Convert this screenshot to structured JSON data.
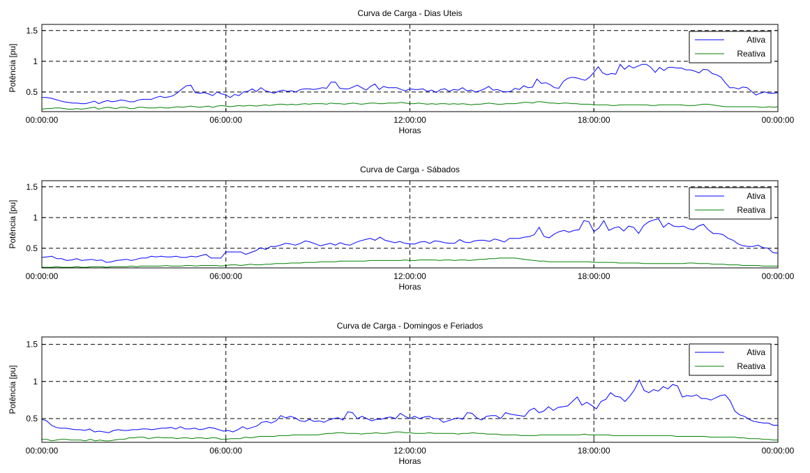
{
  "colors": {
    "ativa": "#0000ff",
    "reativa": "#008000",
    "grid": "#000000",
    "axes": "#000000"
  },
  "chart_data": [
    {
      "type": "line",
      "title": "Curva de Carga - Dias Uteis",
      "xlabel": "Horas",
      "ylabel": "Potência [pu]",
      "xlim": [
        0,
        24
      ],
      "ylim": [
        0.18,
        1.6
      ],
      "yticks": [
        0.5,
        1,
        1.5
      ],
      "ytick_labels": [
        "0.5",
        "1",
        "1.5"
      ],
      "xticks": [
        0,
        6,
        12,
        18,
        24
      ],
      "xtick_labels": [
        "00:00:00",
        "06:00:00",
        "12:00:00",
        "18:00:00",
        "00:00:00"
      ],
      "grid": true,
      "legend": "top-right",
      "series": [
        {
          "name": "Ativa",
          "color": "#0000ff",
          "x_step": 0.1667,
          "values": [
            0.41,
            0.41,
            0.4,
            0.38,
            0.36,
            0.34,
            0.33,
            0.32,
            0.32,
            0.31,
            0.31,
            0.33,
            0.35,
            0.31,
            0.34,
            0.36,
            0.34,
            0.35,
            0.37,
            0.36,
            0.34,
            0.34,
            0.37,
            0.38,
            0.38,
            0.38,
            0.41,
            0.43,
            0.41,
            0.42,
            0.44,
            0.49,
            0.55,
            0.6,
            0.61,
            0.49,
            0.48,
            0.49,
            0.47,
            0.44,
            0.5,
            0.47,
            0.45,
            0.41,
            0.46,
            0.44,
            0.5,
            0.51,
            0.55,
            0.51,
            0.57,
            0.52,
            0.5,
            0.48,
            0.51,
            0.53,
            0.51,
            0.52,
            0.5,
            0.54,
            0.55,
            0.55,
            0.54,
            0.55,
            0.57,
            0.56,
            0.66,
            0.66,
            0.56,
            0.55,
            0.55,
            0.58,
            0.61,
            0.57,
            0.53,
            0.59,
            0.63,
            0.54,
            0.59,
            0.57,
            0.57,
            0.57,
            0.54,
            0.52,
            0.55,
            0.54,
            0.54,
            0.55,
            0.51,
            0.53,
            0.49,
            0.54,
            0.55,
            0.51,
            0.54,
            0.53,
            0.57,
            0.52,
            0.53,
            0.5,
            0.52,
            0.55,
            0.59,
            0.53,
            0.54,
            0.51,
            0.5,
            0.51,
            0.56,
            0.54,
            0.6,
            0.57,
            0.58,
            0.71,
            0.64,
            0.65,
            0.62,
            0.57,
            0.56,
            0.67,
            0.72,
            0.74,
            0.73,
            0.71,
            0.69,
            0.74,
            0.82,
            0.91,
            0.81,
            0.78,
            0.8,
            0.79,
            0.95,
            0.87,
            0.93,
            0.89,
            0.92,
            0.95,
            0.95,
            0.9,
            0.82,
            0.9,
            0.85,
            0.9,
            0.9,
            0.89,
            0.89,
            0.86,
            0.86,
            0.84,
            0.81,
            0.87,
            0.86,
            0.8,
            0.78,
            0.74,
            0.65,
            0.57,
            0.57,
            0.55,
            0.58,
            0.57,
            0.51,
            0.45,
            0.48,
            0.5,
            0.48,
            0.48,
            0.49
          ]
        },
        {
          "name": "Reativa",
          "color": "#008000",
          "x_step": 0.1667,
          "values": [
            0.22,
            0.23,
            0.23,
            0.24,
            0.24,
            0.23,
            0.22,
            0.22,
            0.23,
            0.22,
            0.23,
            0.24,
            0.25,
            0.22,
            0.24,
            0.25,
            0.24,
            0.23,
            0.25,
            0.25,
            0.23,
            0.23,
            0.25,
            0.25,
            0.24,
            0.24,
            0.24,
            0.25,
            0.24,
            0.24,
            0.25,
            0.26,
            0.25,
            0.26,
            0.27,
            0.26,
            0.25,
            0.26,
            0.27,
            0.25,
            0.27,
            0.28,
            0.27,
            0.26,
            0.27,
            0.28,
            0.27,
            0.28,
            0.28,
            0.27,
            0.28,
            0.29,
            0.28,
            0.29,
            0.3,
            0.3,
            0.29,
            0.3,
            0.29,
            0.3,
            0.31,
            0.3,
            0.31,
            0.31,
            0.31,
            0.3,
            0.32,
            0.31,
            0.31,
            0.3,
            0.31,
            0.32,
            0.31,
            0.3,
            0.31,
            0.32,
            0.32,
            0.31,
            0.31,
            0.32,
            0.32,
            0.32,
            0.33,
            0.32,
            0.31,
            0.31,
            0.32,
            0.31,
            0.3,
            0.31,
            0.3,
            0.31,
            0.31,
            0.3,
            0.31,
            0.3,
            0.31,
            0.3,
            0.29,
            0.3,
            0.3,
            0.31,
            0.32,
            0.31,
            0.3,
            0.3,
            0.31,
            0.31,
            0.31,
            0.32,
            0.33,
            0.33,
            0.32,
            0.34,
            0.34,
            0.33,
            0.32,
            0.32,
            0.31,
            0.32,
            0.32,
            0.31,
            0.31,
            0.3,
            0.3,
            0.3,
            0.29,
            0.29,
            0.29,
            0.29,
            0.28,
            0.28,
            0.29,
            0.29,
            0.29,
            0.29,
            0.29,
            0.29,
            0.29,
            0.28,
            0.28,
            0.29,
            0.29,
            0.29,
            0.29,
            0.29,
            0.29,
            0.28,
            0.28,
            0.28,
            0.29,
            0.3,
            0.3,
            0.29,
            0.28,
            0.27,
            0.26,
            0.26,
            0.26,
            0.26,
            0.26,
            0.26,
            0.26,
            0.26,
            0.25,
            0.25,
            0.26,
            0.25,
            0.26
          ]
        }
      ]
    },
    {
      "type": "line",
      "title": "Curva de Carga - Sábados",
      "xlabel": "Horas",
      "ylabel": "Potência [pu]",
      "xlim": [
        0,
        24
      ],
      "ylim": [
        0.18,
        1.6
      ],
      "yticks": [
        0.5,
        1,
        1.5
      ],
      "ytick_labels": [
        "0.5",
        "1",
        "1.5"
      ],
      "xticks": [
        0,
        6,
        12,
        18,
        24
      ],
      "xtick_labels": [
        "00:00:00",
        "06:00:00",
        "12:00:00",
        "18:00:00",
        "00:00:00"
      ],
      "grid": true,
      "legend": "top-right",
      "series": [
        {
          "name": "Ativa",
          "color": "#0000ff",
          "x_step": 0.1667,
          "values": [
            0.35,
            0.36,
            0.37,
            0.33,
            0.33,
            0.3,
            0.31,
            0.33,
            0.3,
            0.31,
            0.32,
            0.3,
            0.31,
            0.27,
            0.28,
            0.3,
            0.31,
            0.32,
            0.3,
            0.32,
            0.34,
            0.34,
            0.37,
            0.36,
            0.37,
            0.36,
            0.36,
            0.37,
            0.35,
            0.35,
            0.37,
            0.36,
            0.38,
            0.4,
            0.34,
            0.34,
            0.34,
            0.44,
            0.44,
            0.44,
            0.44,
            0.4,
            0.43,
            0.46,
            0.51,
            0.48,
            0.53,
            0.53,
            0.55,
            0.58,
            0.57,
            0.55,
            0.58,
            0.62,
            0.6,
            0.57,
            0.54,
            0.56,
            0.58,
            0.55,
            0.59,
            0.56,
            0.55,
            0.59,
            0.62,
            0.64,
            0.66,
            0.63,
            0.68,
            0.63,
            0.61,
            0.59,
            0.61,
            0.58,
            0.57,
            0.57,
            0.6,
            0.61,
            0.58,
            0.62,
            0.61,
            0.59,
            0.58,
            0.58,
            0.64,
            0.6,
            0.59,
            0.62,
            0.63,
            0.63,
            0.61,
            0.65,
            0.63,
            0.6,
            0.66,
            0.66,
            0.66,
            0.68,
            0.69,
            0.72,
            0.84,
            0.69,
            0.67,
            0.73,
            0.77,
            0.79,
            0.76,
            0.79,
            0.8,
            0.95,
            0.93,
            0.77,
            0.83,
            0.95,
            0.79,
            0.83,
            0.85,
            0.78,
            0.86,
            0.84,
            0.74,
            0.87,
            0.93,
            0.96,
            0.98,
            0.84,
            0.91,
            0.86,
            0.85,
            0.86,
            0.82,
            0.8,
            0.86,
            0.89,
            0.8,
            0.74,
            0.74,
            0.72,
            0.66,
            0.63,
            0.57,
            0.54,
            0.53,
            0.53,
            0.55,
            0.51,
            0.5,
            0.43,
            0.42
          ]
        },
        {
          "name": "Reativa",
          "color": "#008000",
          "x_step": 0.1667,
          "values": [
            0.19,
            0.19,
            0.19,
            0.2,
            0.19,
            0.19,
            0.19,
            0.2,
            0.19,
            0.19,
            0.2,
            0.2,
            0.2,
            0.19,
            0.2,
            0.2,
            0.2,
            0.2,
            0.21,
            0.2,
            0.21,
            0.21,
            0.21,
            0.21,
            0.21,
            0.22,
            0.21,
            0.21,
            0.21,
            0.22,
            0.22,
            0.21,
            0.22,
            0.22,
            0.22,
            0.22,
            0.21,
            0.22,
            0.23,
            0.23,
            0.22,
            0.23,
            0.24,
            0.23,
            0.23,
            0.24,
            0.24,
            0.25,
            0.25,
            0.25,
            0.26,
            0.26,
            0.26,
            0.27,
            0.27,
            0.27,
            0.28,
            0.28,
            0.28,
            0.28,
            0.29,
            0.29,
            0.29,
            0.29,
            0.29,
            0.29,
            0.3,
            0.3,
            0.3,
            0.3,
            0.3,
            0.3,
            0.3,
            0.31,
            0.3,
            0.3,
            0.31,
            0.31,
            0.31,
            0.31,
            0.3,
            0.31,
            0.31,
            0.3,
            0.31,
            0.31,
            0.3,
            0.31,
            0.32,
            0.32,
            0.33,
            0.33,
            0.34,
            0.34,
            0.34,
            0.34,
            0.33,
            0.32,
            0.31,
            0.3,
            0.29,
            0.29,
            0.28,
            0.28,
            0.28,
            0.28,
            0.28,
            0.28,
            0.28,
            0.28,
            0.28,
            0.27,
            0.27,
            0.27,
            0.27,
            0.27,
            0.26,
            0.26,
            0.26,
            0.26,
            0.26,
            0.25,
            0.25,
            0.25,
            0.25,
            0.25,
            0.25,
            0.25,
            0.25,
            0.25,
            0.26,
            0.26,
            0.25,
            0.25,
            0.25,
            0.24,
            0.24,
            0.24,
            0.23,
            0.23,
            0.23,
            0.22,
            0.22,
            0.22,
            0.22,
            0.21,
            0.21,
            0.21,
            0.21
          ]
        }
      ]
    },
    {
      "type": "line",
      "title": "Curva de Carga - Domingos e Feriados",
      "xlabel": "Horas",
      "ylabel": "Potência [pu]",
      "xlim": [
        0,
        24
      ],
      "ylim": [
        0.18,
        1.6
      ],
      "yticks": [
        0.5,
        1,
        1.5
      ],
      "ytick_labels": [
        "0.5",
        "1",
        "1.5"
      ],
      "xticks": [
        0,
        6,
        12,
        18,
        24
      ],
      "xtick_labels": [
        "00:00:00",
        "06:00:00",
        "12:00:00",
        "18:00:00",
        "00:00:00"
      ],
      "grid": true,
      "legend": "top-right",
      "series": [
        {
          "name": "Ativa",
          "color": "#0000ff",
          "x_step": 0.1667,
          "values": [
            0.49,
            0.47,
            0.41,
            0.38,
            0.37,
            0.37,
            0.36,
            0.35,
            0.35,
            0.34,
            0.36,
            0.32,
            0.33,
            0.32,
            0.31,
            0.34,
            0.35,
            0.34,
            0.34,
            0.35,
            0.35,
            0.36,
            0.36,
            0.35,
            0.36,
            0.37,
            0.37,
            0.38,
            0.36,
            0.39,
            0.36,
            0.36,
            0.37,
            0.35,
            0.36,
            0.38,
            0.37,
            0.35,
            0.33,
            0.34,
            0.32,
            0.35,
            0.39,
            0.36,
            0.38,
            0.4,
            0.45,
            0.46,
            0.44,
            0.47,
            0.54,
            0.51,
            0.53,
            0.51,
            0.47,
            0.46,
            0.49,
            0.46,
            0.47,
            0.45,
            0.48,
            0.5,
            0.51,
            0.48,
            0.59,
            0.58,
            0.5,
            0.53,
            0.5,
            0.47,
            0.49,
            0.49,
            0.51,
            0.52,
            0.5,
            0.57,
            0.53,
            0.5,
            0.53,
            0.5,
            0.52,
            0.53,
            0.5,
            0.5,
            0.45,
            0.47,
            0.49,
            0.51,
            0.49,
            0.58,
            0.57,
            0.51,
            0.48,
            0.53,
            0.54,
            0.54,
            0.5,
            0.58,
            0.56,
            0.55,
            0.54,
            0.53,
            0.61,
            0.64,
            0.58,
            0.6,
            0.66,
            0.61,
            0.65,
            0.66,
            0.67,
            0.73,
            0.79,
            0.68,
            0.72,
            0.68,
            0.63,
            0.73,
            0.76,
            0.85,
            0.8,
            0.79,
            0.73,
            0.8,
            0.89,
            1.02,
            0.88,
            0.85,
            0.89,
            0.87,
            0.93,
            0.9,
            0.96,
            0.94,
            0.79,
            0.81,
            0.8,
            0.82,
            0.77,
            0.77,
            0.75,
            0.78,
            0.81,
            0.82,
            0.74,
            0.6,
            0.55,
            0.53,
            0.49,
            0.46,
            0.45,
            0.44,
            0.44,
            0.41,
            0.41
          ]
        },
        {
          "name": "Reativa",
          "color": "#008000",
          "x_step": 0.1667,
          "values": [
            0.22,
            0.22,
            0.2,
            0.21,
            0.22,
            0.22,
            0.21,
            0.21,
            0.21,
            0.2,
            0.22,
            0.2,
            0.21,
            0.2,
            0.2,
            0.21,
            0.22,
            0.22,
            0.24,
            0.24,
            0.25,
            0.25,
            0.23,
            0.24,
            0.25,
            0.24,
            0.24,
            0.24,
            0.23,
            0.24,
            0.24,
            0.23,
            0.24,
            0.24,
            0.23,
            0.24,
            0.24,
            0.22,
            0.22,
            0.23,
            0.23,
            0.23,
            0.25,
            0.24,
            0.25,
            0.26,
            0.26,
            0.26,
            0.26,
            0.27,
            0.27,
            0.27,
            0.28,
            0.28,
            0.28,
            0.28,
            0.28,
            0.28,
            0.29,
            0.3,
            0.3,
            0.31,
            0.31,
            0.3,
            0.3,
            0.3,
            0.29,
            0.3,
            0.3,
            0.31,
            0.3,
            0.3,
            0.31,
            0.32,
            0.32,
            0.31,
            0.31,
            0.3,
            0.3,
            0.3,
            0.31,
            0.3,
            0.3,
            0.3,
            0.3,
            0.3,
            0.29,
            0.3,
            0.3,
            0.31,
            0.3,
            0.3,
            0.29,
            0.29,
            0.29,
            0.28,
            0.28,
            0.28,
            0.28,
            0.27,
            0.27,
            0.27,
            0.27,
            0.28,
            0.28,
            0.28,
            0.28,
            0.28,
            0.28,
            0.28,
            0.28,
            0.28,
            0.29,
            0.28,
            0.28,
            0.28,
            0.28,
            0.28,
            0.27,
            0.27,
            0.27,
            0.27,
            0.27,
            0.27,
            0.27,
            0.27,
            0.27,
            0.27,
            0.27,
            0.27,
            0.27,
            0.26,
            0.26,
            0.26,
            0.26,
            0.26,
            0.26,
            0.26,
            0.25,
            0.25,
            0.25,
            0.25,
            0.25,
            0.25,
            0.24,
            0.24,
            0.23,
            0.23,
            0.23,
            0.22,
            0.22,
            0.21,
            0.21
          ]
        }
      ]
    }
  ]
}
